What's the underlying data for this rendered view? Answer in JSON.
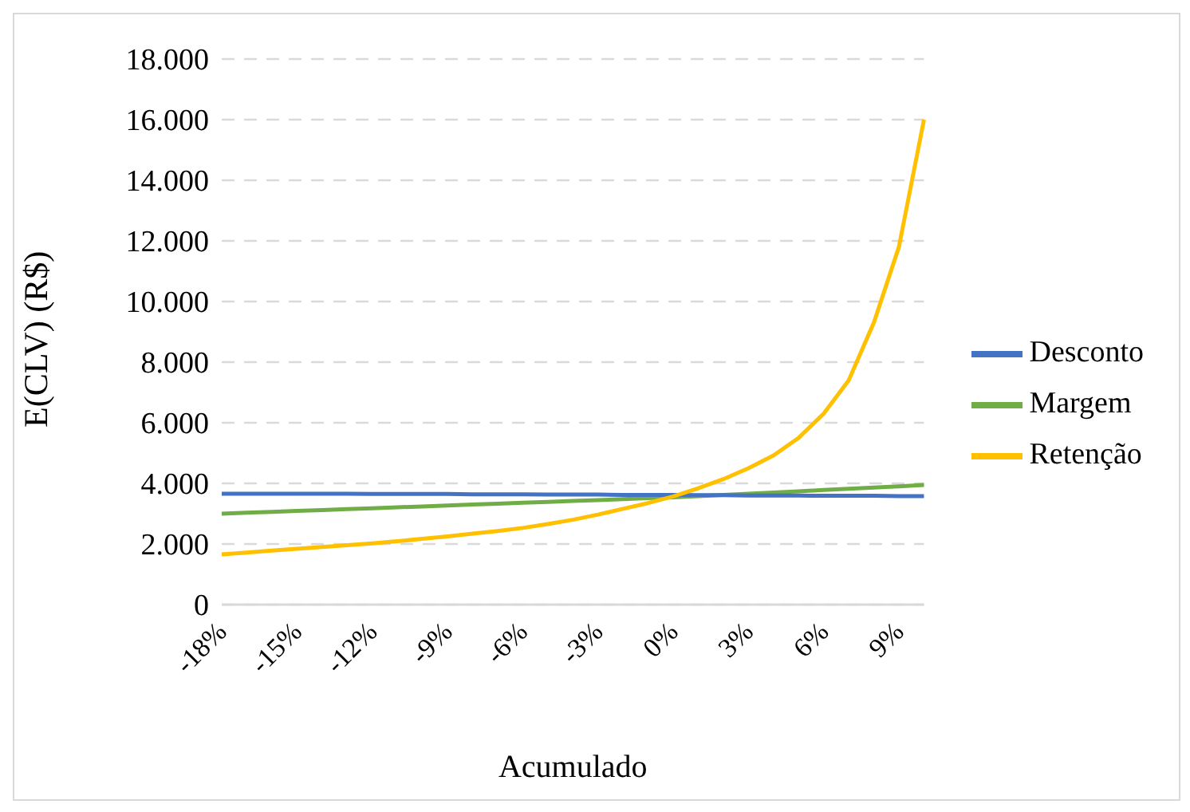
{
  "chart_data": {
    "type": "line",
    "xlabel": "Acumulado",
    "ylabel": "E(CLV) (R$)",
    "categories": [
      "-18%",
      null,
      null,
      "-15%",
      null,
      null,
      "-12%",
      null,
      null,
      "-9%",
      null,
      null,
      "-6%",
      null,
      null,
      "-3%",
      null,
      null,
      "0%",
      null,
      null,
      "3%",
      null,
      null,
      "6%",
      null,
      null,
      "9%",
      null
    ],
    "series": [
      {
        "name": "Margem",
        "color": "#70ad47",
        "values": [
          3000,
          3030,
          3060,
          3090,
          3120,
          3150,
          3180,
          3210,
          3240,
          3270,
          3300,
          3330,
          3360,
          3390,
          3420,
          3450,
          3480,
          3510,
          3540,
          3580,
          3620,
          3660,
          3700,
          3740,
          3780,
          3820,
          3860,
          3900,
          3950
        ]
      },
      {
        "name": "Desconto",
        "color": "#4472c4",
        "values": [
          3660,
          3660,
          3660,
          3660,
          3660,
          3660,
          3650,
          3650,
          3650,
          3650,
          3640,
          3640,
          3640,
          3630,
          3630,
          3630,
          3620,
          3620,
          3620,
          3610,
          3610,
          3600,
          3600,
          3600,
          3590,
          3590,
          3590,
          3580,
          3580
        ]
      },
      {
        "name": "Retenção",
        "color": "#ffc000",
        "values": [
          1660,
          1720,
          1780,
          1840,
          1900,
          1960,
          2020,
          2090,
          2170,
          2250,
          2340,
          2430,
          2530,
          2660,
          2800,
          2970,
          3160,
          3350,
          3570,
          3840,
          4140,
          4500,
          4920,
          5500,
          6300,
          7400,
          9300,
          11800,
          16000
        ]
      }
    ],
    "ylim": [
      0,
      18000
    ],
    "yticks": [
      {
        "value": 0,
        "label": "0"
      },
      {
        "value": 2000,
        "label": "2.000"
      },
      {
        "value": 4000,
        "label": "4.000"
      },
      {
        "value": 6000,
        "label": "6.000"
      },
      {
        "value": 8000,
        "label": "8.000"
      },
      {
        "value": 10000,
        "label": "10.000"
      },
      {
        "value": 12000,
        "label": "12.000"
      },
      {
        "value": 14000,
        "label": "14.000"
      },
      {
        "value": 16000,
        "label": "16.000"
      },
      {
        "value": 18000,
        "label": "18.000"
      }
    ],
    "grid": "y",
    "legend": "right",
    "marker": "none",
    "line_style": "solid"
  }
}
